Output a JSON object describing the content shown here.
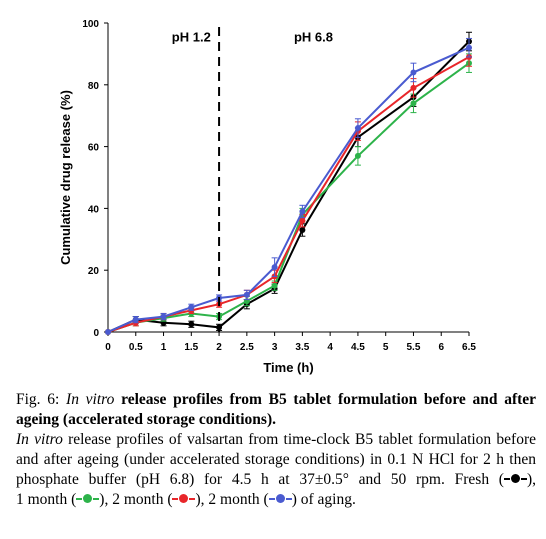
{
  "chart_data": {
    "type": "line",
    "xlabel": "Time (h)",
    "ylabel": "Cumulative drug release (%)",
    "x": [
      0,
      0.5,
      1,
      1.5,
      2,
      2.5,
      3,
      3.5,
      4.5,
      5.5,
      6.5
    ],
    "x_tick_labels": [
      "0",
      "0.5",
      "1",
      "1.5",
      "2",
      "2.5",
      "3",
      "3.5",
      "4",
      "4.5",
      "5",
      "5.5",
      "6",
      "6.5"
    ],
    "y_ticks": [
      "0",
      "20",
      "40",
      "60",
      "80",
      "100"
    ],
    "xlim": [
      0,
      6.5
    ],
    "ylim": [
      0,
      100
    ],
    "grid": false,
    "annotations": [
      {
        "text": "pH 1.2",
        "x": 1.5
      },
      {
        "text": "pH 6.8",
        "x": 3.7
      }
    ],
    "divider_x": 2,
    "series": [
      {
        "key": "fresh",
        "color": "#000000",
        "values": [
          0,
          4,
          3,
          2.5,
          1.5,
          9,
          14,
          33,
          63,
          76,
          94
        ],
        "errors": [
          0,
          1,
          1,
          1,
          1,
          1.5,
          1.5,
          2,
          3,
          3,
          3
        ]
      },
      {
        "key": "green",
        "color": "#2db34a",
        "values": [
          0,
          3,
          4.5,
          6,
          5,
          10,
          15,
          38,
          57,
          74,
          87
        ],
        "errors": [
          0,
          1,
          1,
          1,
          1,
          1.5,
          1.5,
          2,
          3,
          3,
          3
        ]
      },
      {
        "key": "red",
        "color": "#e8262a",
        "values": [
          0,
          3,
          5,
          7,
          9,
          12,
          18,
          36,
          65,
          79,
          89
        ],
        "errors": [
          0,
          1,
          1,
          1,
          1,
          1.5,
          2,
          2,
          3,
          3,
          3
        ]
      },
      {
        "key": "blue",
        "color": "#4a5bd0",
        "values": [
          0,
          4,
          5,
          8,
          11,
          12,
          21,
          39,
          66,
          84,
          92
        ],
        "errors": [
          0,
          1,
          1,
          1,
          1,
          1.5,
          3,
          2,
          3,
          3,
          3
        ]
      }
    ]
  },
  "caption": {
    "fig_label": "Fig. 6:",
    "title_italic": "In vitro",
    "title_rest": "release profiles from B5 tablet formulation before and after ageing (accelerated storage conditions).",
    "body_italic": "In vitro",
    "body_text": "release profiles of valsartan from time-clock B5 tablet formulation before and after ageing (under accelerated storage conditions) in 0.1 N HCl for 2 h then phosphate buffer (pH 6.8) for 4.5 h at 37±0.5° and 50 rpm.",
    "legend": [
      {
        "label": "Fresh",
        "color": "#000000",
        "sep": ","
      },
      {
        "label": "1 month",
        "color": "#2db34a",
        "sep": ","
      },
      {
        "label": "2 month",
        "color": "#e8262a",
        "sep": ","
      },
      {
        "label": "2 month",
        "color": "#4a5bd0",
        "sep": ""
      }
    ],
    "ending": "of aging."
  }
}
